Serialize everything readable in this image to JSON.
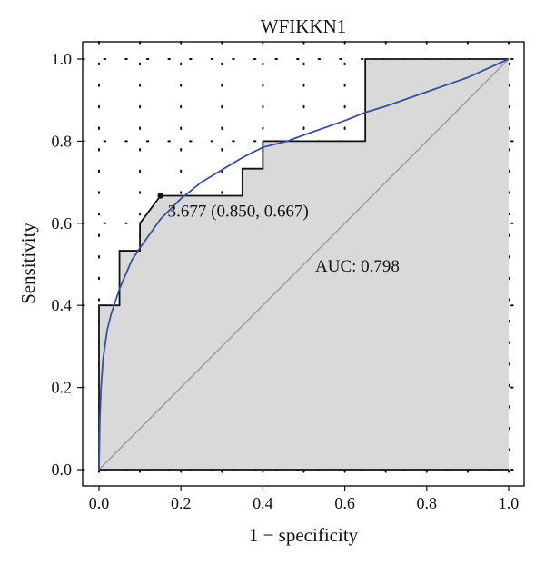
{
  "chart_data": {
    "type": "line",
    "title": "WFIKKN1",
    "xlabel": "1 − specificity",
    "ylabel": "Sensitivity",
    "xlim": [
      0.0,
      1.0
    ],
    "ylim": [
      0.0,
      1.0
    ],
    "xticks": [
      "0.0",
      "0.2",
      "0.4",
      "0.6",
      "0.8",
      "1.0"
    ],
    "yticks": [
      "0.0",
      "0.2",
      "0.4",
      "0.6",
      "0.8",
      "1.0"
    ],
    "grid": "dotted",
    "series": [
      {
        "kind": "empirical-roc-step",
        "x": [
          0.0,
          0.0,
          0.05,
          0.05,
          0.1,
          0.1,
          0.15,
          0.35,
          0.35,
          0.4,
          0.4,
          0.65,
          0.65,
          1.0
        ],
        "y": [
          0.0,
          0.4,
          0.4,
          0.533,
          0.533,
          0.6,
          0.667,
          0.667,
          0.733,
          0.733,
          0.8,
          0.8,
          1.0,
          1.0
        ]
      },
      {
        "kind": "smoothed-roc",
        "x": [
          0.0,
          0.002,
          0.005,
          0.01,
          0.02,
          0.03,
          0.05,
          0.08,
          0.1,
          0.15,
          0.2,
          0.25,
          0.3,
          0.35,
          0.4,
          0.46,
          0.5,
          0.6,
          0.65,
          0.7,
          0.8,
          0.9,
          1.0
        ],
        "y": [
          0.0,
          0.12,
          0.2,
          0.27,
          0.34,
          0.38,
          0.44,
          0.51,
          0.54,
          0.61,
          0.66,
          0.7,
          0.73,
          0.76,
          0.785,
          0.8,
          0.815,
          0.85,
          0.87,
          0.885,
          0.92,
          0.955,
          1.0
        ]
      },
      {
        "kind": "reference-diagonal",
        "x": [
          0.0,
          1.0
        ],
        "y": [
          0.0,
          1.0
        ]
      }
    ],
    "annotations": [
      {
        "kind": "best-threshold",
        "x": 0.15,
        "y": 0.667,
        "label": "3.677 (0.850, 0.667)"
      },
      {
        "kind": "auc",
        "label": "AUC: 0.798"
      }
    ],
    "colors": {
      "smoothed_curve": "#3a4fa0",
      "step_curve": "#111111",
      "diagonal": "#9a9a9a",
      "auc_fill": "#d9d9d9",
      "grid": "#111111"
    }
  }
}
